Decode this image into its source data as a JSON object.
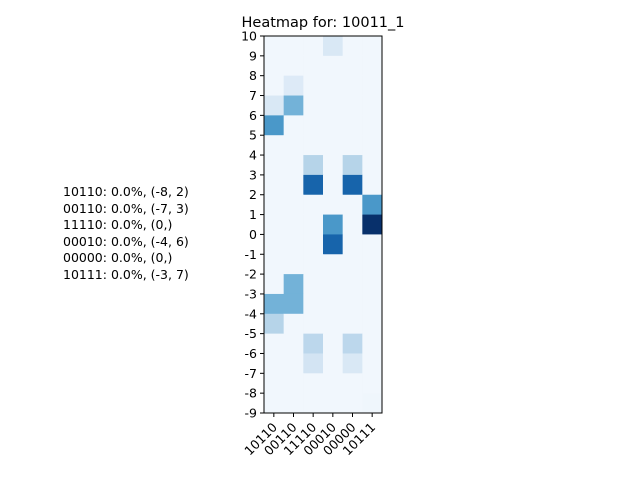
{
  "chart_data": {
    "type": "heatmap",
    "title": "Heatmap for: 10011_1",
    "xlabel": "",
    "ylabel": "",
    "categories": [
      "10110",
      "00110",
      "11110",
      "00010",
      "00000",
      "10111"
    ],
    "y_ticks": [
      10,
      9,
      8,
      7,
      6,
      5,
      4,
      3,
      2,
      1,
      0,
      -1,
      -2,
      -3,
      -4,
      -5,
      -6,
      -7,
      -8,
      -9
    ],
    "ylim": [
      -9,
      10
    ],
    "colormap": "Blues",
    "grid": false,
    "legend": "none",
    "rows": [
      {
        "y": 9,
        "values": [
          0.03,
          0.03,
          0.03,
          0.15,
          0.03,
          0.03
        ]
      },
      {
        "y": 8,
        "values": [
          0.03,
          0.03,
          0.03,
          0.03,
          0.03,
          0.03
        ]
      },
      {
        "y": 7,
        "values": [
          0.03,
          0.13,
          0.03,
          0.03,
          0.03,
          0.03
        ]
      },
      {
        "y": 6,
        "values": [
          0.15,
          0.48,
          0.03,
          0.03,
          0.03,
          0.03
        ]
      },
      {
        "y": 5,
        "values": [
          0.6,
          0.03,
          0.03,
          0.03,
          0.03,
          0.03
        ]
      },
      {
        "y": 4,
        "values": [
          0.03,
          0.03,
          0.03,
          0.03,
          0.03,
          0.03
        ]
      },
      {
        "y": 3,
        "values": [
          0.03,
          0.03,
          0.3,
          0.03,
          0.3,
          0.03
        ]
      },
      {
        "y": 2,
        "values": [
          0.03,
          0.03,
          0.8,
          0.03,
          0.8,
          0.03
        ]
      },
      {
        "y": 1,
        "values": [
          0.03,
          0.03,
          0.03,
          0.03,
          0.03,
          0.6
        ]
      },
      {
        "y": 0,
        "values": [
          0.03,
          0.03,
          0.03,
          0.6,
          0.03,
          1.0
        ]
      },
      {
        "y": -1,
        "values": [
          0.03,
          0.03,
          0.03,
          0.8,
          0.03,
          0.03
        ]
      },
      {
        "y": -2,
        "values": [
          0.03,
          0.03,
          0.03,
          0.03,
          0.03,
          0.03
        ]
      },
      {
        "y": -3,
        "values": [
          0.03,
          0.48,
          0.03,
          0.03,
          0.03,
          0.03
        ]
      },
      {
        "y": -4,
        "values": [
          0.48,
          0.48,
          0.03,
          0.03,
          0.03,
          0.03
        ]
      },
      {
        "y": -5,
        "values": [
          0.3,
          0.03,
          0.03,
          0.03,
          0.03,
          0.03
        ]
      },
      {
        "y": -6,
        "values": [
          0.03,
          0.03,
          0.28,
          0.03,
          0.28,
          0.03
        ]
      },
      {
        "y": -7,
        "values": [
          0.03,
          0.03,
          0.18,
          0.03,
          0.15,
          0.03
        ]
      },
      {
        "y": -8,
        "values": [
          0.03,
          0.03,
          0.03,
          0.03,
          0.03,
          0.03
        ]
      },
      {
        "y": -9,
        "values": [
          0.03,
          0.03,
          0.03,
          0.03,
          0.03,
          0.04
        ]
      }
    ],
    "annotations": [
      "10110: 0.0%, (-8, 2)",
      "00110: 0.0%, (-7, 3)",
      "11110: 0.0%, (0,)",
      "00010: 0.0%, (-4, 6)",
      "00000: 0.0%, (0,)",
      "10111: 0.0%, (-3, 7)"
    ]
  }
}
